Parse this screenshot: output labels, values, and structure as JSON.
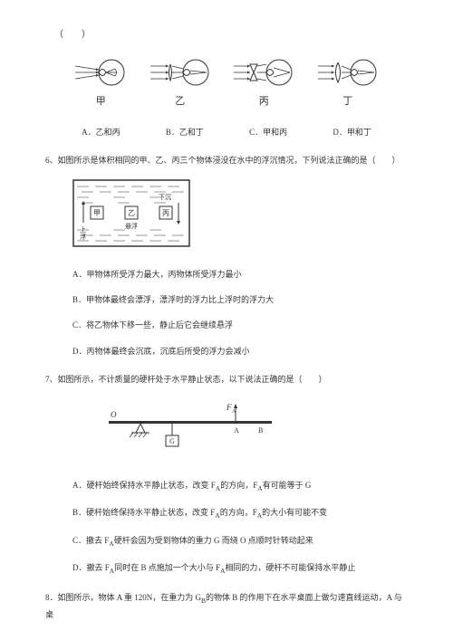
{
  "bracket": "（　　）",
  "eye_labels": [
    "甲",
    "乙",
    "丙",
    "丁"
  ],
  "q5_options": {
    "a": "A．乙和丙",
    "b": "B．乙和丁",
    "c": "C．甲和丙",
    "d": "D．甲和丁"
  },
  "q6": {
    "text": "6、如图所示是体积相同的甲、乙、丙三个物体浸没在水中的浮沉情况，下列说法正确的是（　　）",
    "diagram": {
      "labels": {
        "jia": "甲",
        "yi": "乙",
        "bing": "丙"
      },
      "arrows": {
        "up": "上浮",
        "float": "悬浮",
        "down": "下沉"
      }
    },
    "options": {
      "a": "A．甲物体所受浮力最大，丙物体所受浮力最小",
      "b": "B．甲物体最终会漂浮，漂浮时的浮力比上浮时的浮力大",
      "c": "C．将乙物体下移一些，静止后它会继续悬浮",
      "d": "D．丙物体最终会沉底，沉底后所受的浮力会减小"
    }
  },
  "q7": {
    "text": "7、如图所示，不计质量的硬杆处于水平静止状态，以下说法正确的是（　　）",
    "diagram": {
      "o": "O",
      "fa": "F",
      "a_sub": "A",
      "a": "A",
      "b": "B",
      "g": "G"
    },
    "options": {
      "a": "A．硬杆始终保持水平静止状态，改变 F<sub>A</sub>的方向，F<sub>A</sub>有可能等于 G",
      "b": "B．硬杆始终保持水平静止状态，改变 F<sub>A</sub>的方向，F<sub>A</sub>的大小有可能不变",
      "c": "C．撤去 F<sub>A</sub>硬杆会因为受到物体的重力 G 而绕 O 点顺时针转动起来",
      "d": "D．撤去 F<sub>A</sub>同时在 B 点施加一个大小与 F<sub>A</sub>相同的力，硬杆不可能保持水平静止"
    }
  },
  "q8": {
    "text": "8．如图所示，物体 A 重 120N，在重力为 G<sub>B</sub>的物体 B 的作用下在水平桌面上做匀速直线运动，A 与桌"
  },
  "colors": {
    "text": "#333333",
    "line": "#333333",
    "bg": "#ffffff"
  }
}
